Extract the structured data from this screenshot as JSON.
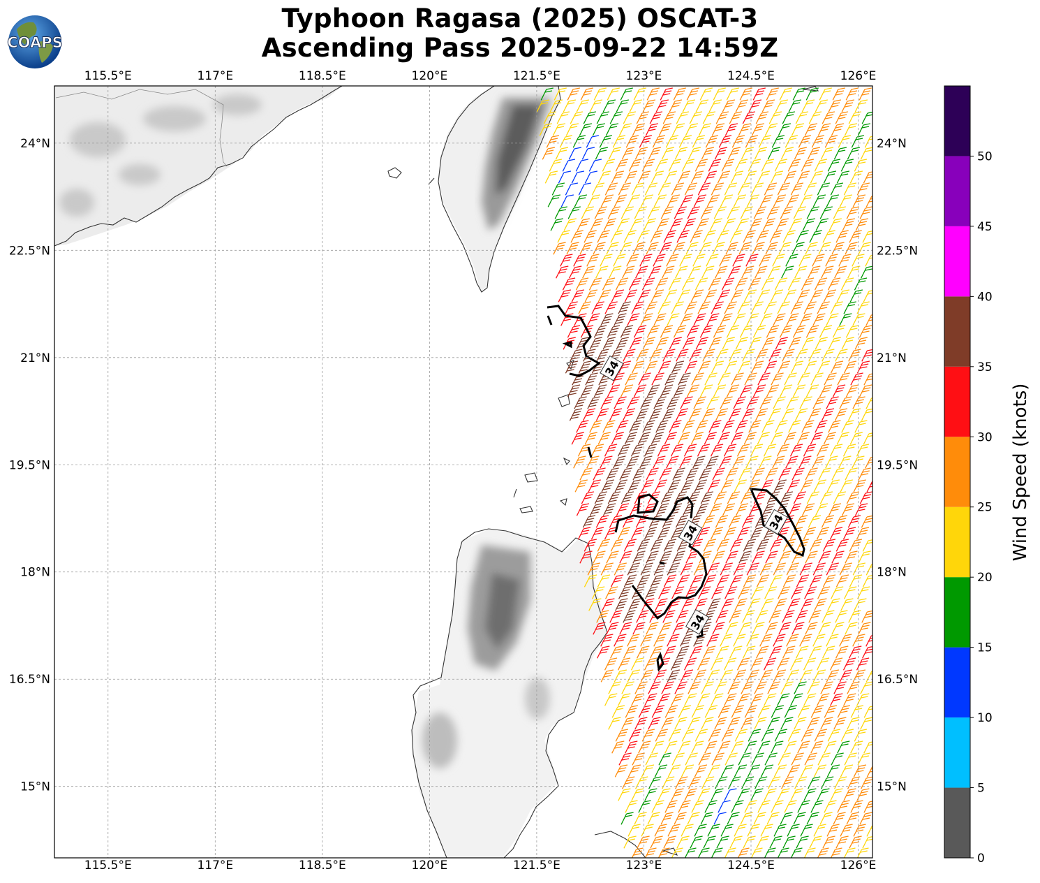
{
  "title": {
    "line1": "Typhoon Ragasa (2025) OSCAT-3",
    "line2": "Ascending Pass 2025-09-22 14:59Z"
  },
  "logo": {
    "text": "COAPS",
    "icon": "globe-icon"
  },
  "map": {
    "projection": "lat-lon",
    "lon_range": [
      114.75,
      126.2
    ],
    "lat_range": [
      14.0,
      24.8
    ],
    "lon_ticks": [
      "115.5°E",
      "117°E",
      "118.5°E",
      "120°E",
      "121.5°E",
      "123°E",
      "124.5°E",
      "126°E"
    ],
    "lat_ticks": [
      "24°N",
      "22.5°N",
      "21°N",
      "19.5°N",
      "18°N",
      "16.5°N",
      "15°N"
    ],
    "lon_tick_values": [
      115.5,
      117,
      118.5,
      120,
      121.5,
      123,
      124.5,
      126
    ],
    "lat_tick_values": [
      24,
      22.5,
      21,
      19.5,
      18,
      16.5,
      15
    ],
    "grid": true,
    "terrain_shading": "grayscale",
    "contour_label": "34",
    "contour_label_positions": [
      [
        122.55,
        20.85
      ],
      [
        123.65,
        18.55
      ],
      [
        123.75,
        17.3
      ],
      [
        124.85,
        18.7
      ]
    ]
  },
  "colorbar": {
    "label": "Wind Speed (knots)",
    "tick_labels": [
      "0",
      "5",
      "10",
      "15",
      "20",
      "25",
      "30",
      "35",
      "40",
      "45",
      "50"
    ],
    "bins": [
      {
        "from": 0,
        "to": 5,
        "color": "#595959"
      },
      {
        "from": 5,
        "to": 10,
        "color": "#00bfff"
      },
      {
        "from": 10,
        "to": 15,
        "color": "#0038ff"
      },
      {
        "from": 15,
        "to": 20,
        "color": "#009900"
      },
      {
        "from": 20,
        "to": 25,
        "color": "#ffd60a"
      },
      {
        "from": 25,
        "to": 30,
        "color": "#ff8c0a"
      },
      {
        "from": 30,
        "to": 35,
        "color": "#ff0f14"
      },
      {
        "from": 35,
        "to": 40,
        "color": "#7f3c28"
      },
      {
        "from": 40,
        "to": 45,
        "color": "#ff00ff"
      },
      {
        "from": 45,
        "to": 50,
        "color": "#8800bb"
      },
      {
        "from": 50,
        "to": 55,
        "color": "#2d0057"
      }
    ]
  }
}
